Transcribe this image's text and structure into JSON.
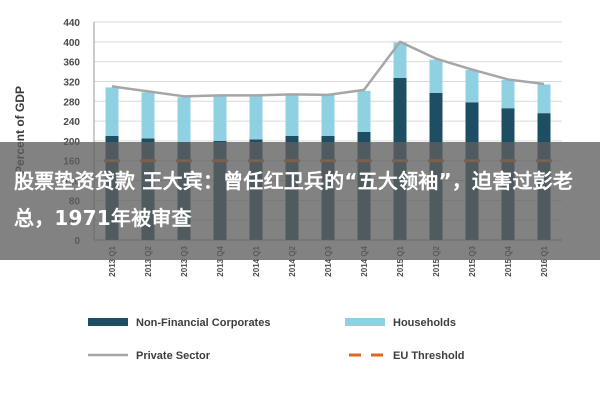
{
  "chart_data": {
    "type": "bar",
    "stacked": true,
    "ylabel": "Percent of GDP",
    "ylim": [
      0,
      440
    ],
    "yticks": [
      0,
      40,
      80,
      120,
      160,
      200,
      240,
      280,
      320,
      360,
      400,
      440
    ],
    "grid": true,
    "categories": [
      "2013 Q1",
      "2013 Q2",
      "2013 Q3",
      "2013 Q4",
      "2014 Q1",
      "2014 Q2",
      "2014 Q3",
      "2014 Q4",
      "2015 Q1",
      "2015 Q2",
      "2015 Q3",
      "2015 Q4",
      "2016 Q1"
    ],
    "series": [
      {
        "name": "Non-Financial Corporates",
        "kind": "bar",
        "color": "#1d4e63",
        "values": [
          210,
          205,
          198,
          200,
          203,
          210,
          210,
          218,
          327,
          297,
          278,
          266,
          256
        ]
      },
      {
        "name": "Households",
        "kind": "bar",
        "color": "#8fd0e3",
        "values": [
          98,
          93,
          90,
          91,
          88,
          83,
          83,
          83,
          72,
          67,
          65,
          57,
          58
        ]
      },
      {
        "name": "Private Sector",
        "kind": "line",
        "color": "#a6a6a6",
        "values": [
          310,
          300,
          290,
          292,
          292,
          294,
          293,
          303,
          400,
          366,
          344,
          324,
          315
        ]
      },
      {
        "name": "EU Threshold",
        "kind": "dashed-line",
        "color": "#e0671f",
        "values": [
          160,
          160,
          160,
          160,
          160,
          160,
          160,
          160,
          160,
          160,
          160,
          160,
          160
        ]
      }
    ],
    "legend": "bottom"
  },
  "overlay": {
    "headline": "股票垫资贷款 王大宾：曾任红卫兵的“五大领袖”，迫害过彭老总，1971年被审查"
  }
}
